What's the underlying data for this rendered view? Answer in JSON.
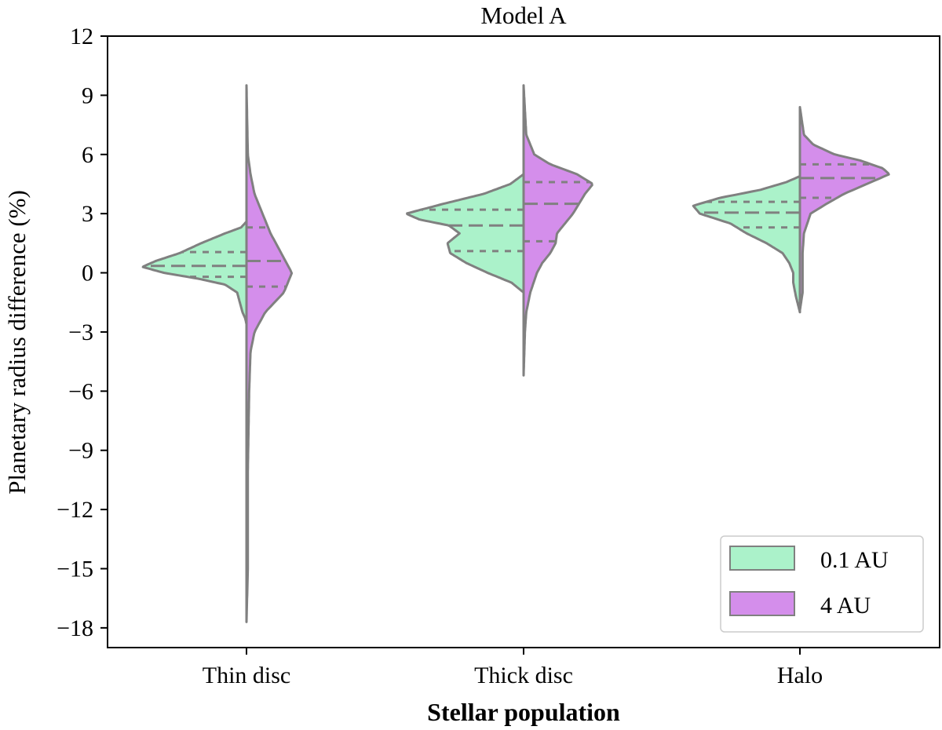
{
  "chart_data": {
    "type": "split-violin",
    "title": "Model A",
    "xlabel": "Stellar population",
    "ylabel": "Planetary radius difference (%)",
    "ylim": [
      -19.0,
      12.0
    ],
    "yticks": [
      12,
      9,
      6,
      3,
      0,
      -3,
      -6,
      -9,
      -12,
      -15,
      -18
    ],
    "ytick_labels": [
      "12",
      "9",
      "6",
      "3",
      "0",
      "−3",
      "−6",
      "−9",
      "−12",
      "−15",
      "−18"
    ],
    "categories": [
      "Thin disc",
      "Thick disc",
      "Halo"
    ],
    "legend": {
      "position": "lower right",
      "entries": [
        "0.1 AU",
        "4 AU"
      ]
    },
    "series": [
      {
        "name": "0.1 AU",
        "side": "left",
        "color": "#abf2ca",
        "violins": [
          {
            "category": "Thin disc",
            "quartiles": [
              -0.2,
              0.35,
              1.05
            ],
            "profile": [
              [
                -2.6,
                0
              ],
              [
                -2.3,
                0.01
              ],
              [
                -2.0,
                0.03
              ],
              [
                -1.5,
                0.05
              ],
              [
                -1.0,
                0.07
              ],
              [
                -0.6,
                0.16
              ],
              [
                -0.3,
                0.36
              ],
              [
                0.0,
                0.62
              ],
              [
                0.3,
                0.78
              ],
              [
                0.6,
                0.68
              ],
              [
                1.0,
                0.5
              ],
              [
                1.5,
                0.34
              ],
              [
                2.0,
                0.16
              ],
              [
                2.3,
                0.04
              ],
              [
                2.6,
                0
              ]
            ]
          },
          {
            "category": "Thick disc",
            "quartiles": [
              1.1,
              2.4,
              3.2
            ],
            "profile": [
              [
                -1.0,
                0
              ],
              [
                -0.5,
                0.09
              ],
              [
                0.0,
                0.27
              ],
              [
                0.5,
                0.43
              ],
              [
                1.0,
                0.55
              ],
              [
                1.5,
                0.57
              ],
              [
                2.0,
                0.48
              ],
              [
                2.4,
                0.56
              ],
              [
                2.7,
                0.78
              ],
              [
                3.0,
                0.88
              ],
              [
                3.5,
                0.6
              ],
              [
                4.0,
                0.3
              ],
              [
                4.5,
                0.1
              ],
              [
                5.0,
                0
              ]
            ]
          },
          {
            "category": "Halo",
            "quartiles": [
              2.3,
              3.05,
              3.6
            ],
            "profile": [
              [
                -2.0,
                0
              ],
              [
                -1.2,
                0.03
              ],
              [
                -0.5,
                0.05
              ],
              [
                0.0,
                0.05
              ],
              [
                0.5,
                0.08
              ],
              [
                1.0,
                0.13
              ],
              [
                1.5,
                0.25
              ],
              [
                2.0,
                0.4
              ],
              [
                2.5,
                0.52
              ],
              [
                3.0,
                0.75
              ],
              [
                3.4,
                0.8
              ],
              [
                3.8,
                0.6
              ],
              [
                4.2,
                0.3
              ],
              [
                4.6,
                0.1
              ],
              [
                4.9,
                0
              ]
            ]
          }
        ]
      },
      {
        "name": "4 AU",
        "side": "right",
        "color": "#d48eeb",
        "violins": [
          {
            "category": "Thin disc",
            "quartiles": [
              -0.7,
              0.6,
              2.3
            ],
            "profile": [
              [
                -17.7,
                0
              ],
              [
                -15,
                0.01
              ],
              [
                -10,
                0.01
              ],
              [
                -6,
                0.02
              ],
              [
                -4,
                0.03
              ],
              [
                -3,
                0.06
              ],
              [
                -2,
                0.14
              ],
              [
                -1,
                0.28
              ],
              [
                0,
                0.34
              ],
              [
                1,
                0.26
              ],
              [
                2,
                0.18
              ],
              [
                3,
                0.12
              ],
              [
                4,
                0.06
              ],
              [
                5,
                0.03
              ],
              [
                6,
                0.01
              ],
              [
                9.5,
                0
              ]
            ]
          },
          {
            "category": "Thick disc",
            "quartiles": [
              1.6,
              3.5,
              4.6
            ],
            "profile": [
              [
                -5.2,
                0
              ],
              [
                -3.0,
                0.01
              ],
              [
                -2.0,
                0.02
              ],
              [
                -1.0,
                0.05
              ],
              [
                0.0,
                0.1
              ],
              [
                0.5,
                0.14
              ],
              [
                1.0,
                0.2
              ],
              [
                1.5,
                0.24
              ],
              [
                2.0,
                0.25
              ],
              [
                3.0,
                0.37
              ],
              [
                4.0,
                0.46
              ],
              [
                4.5,
                0.52
              ],
              [
                5.0,
                0.4
              ],
              [
                5.5,
                0.2
              ],
              [
                6.0,
                0.08
              ],
              [
                7.0,
                0.02
              ],
              [
                9.5,
                0
              ]
            ]
          },
          {
            "category": "Halo",
            "quartiles": [
              3.8,
              4.8,
              5.5
            ],
            "profile": [
              [
                -1.9,
                0
              ],
              [
                -1.0,
                0.02
              ],
              [
                0.0,
                0.02
              ],
              [
                1.0,
                0.02
              ],
              [
                2.0,
                0.03
              ],
              [
                3.0,
                0.08
              ],
              [
                3.5,
                0.2
              ],
              [
                4.0,
                0.33
              ],
              [
                4.5,
                0.5
              ],
              [
                5.0,
                0.67
              ],
              [
                5.3,
                0.62
              ],
              [
                5.7,
                0.45
              ],
              [
                6.0,
                0.26
              ],
              [
                6.5,
                0.1
              ],
              [
                7.0,
                0.03
              ],
              [
                8.4,
                0
              ]
            ]
          }
        ]
      }
    ]
  }
}
